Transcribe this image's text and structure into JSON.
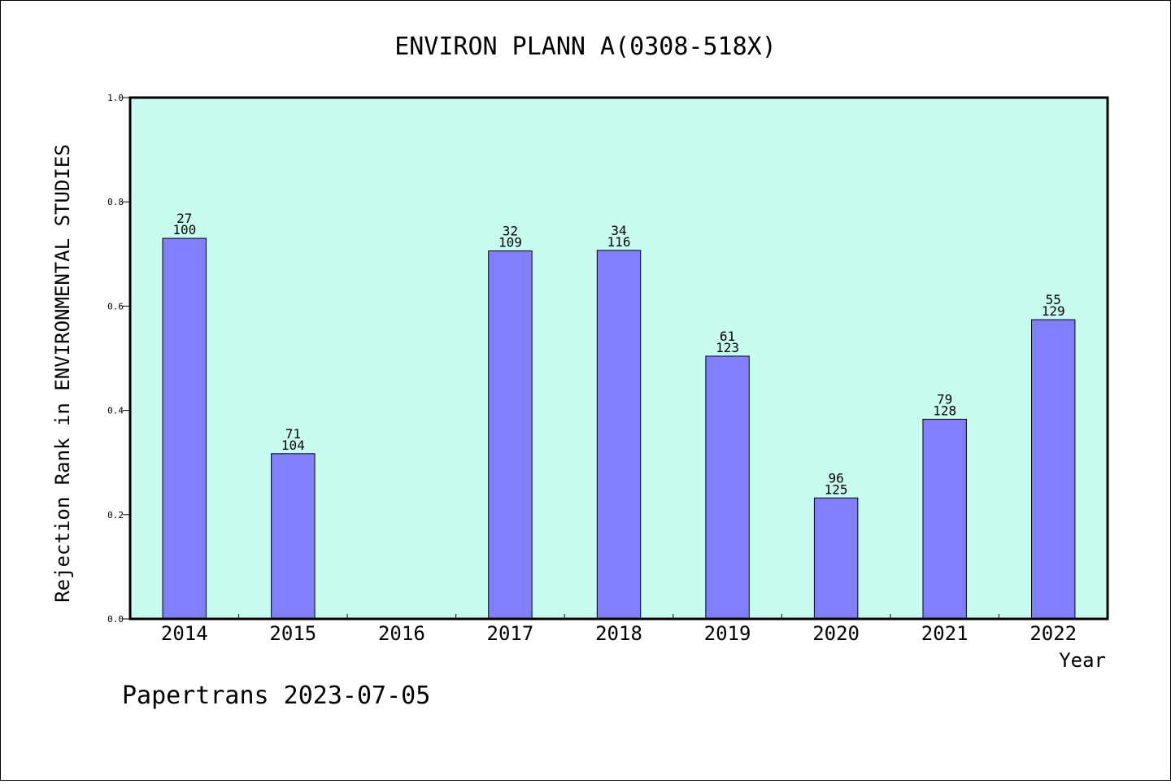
{
  "chart_data": {
    "type": "bar",
    "title": "ENVIRON PLANN A(0308-518X)",
    "xlabel": "Year",
    "ylabel": "Rejection Rank in ENVIRONMENTAL STUDIES",
    "ylim": [
      0,
      1.0
    ],
    "yticks": [
      "0.0",
      "0.2",
      "0.4",
      "0.6",
      "0.8",
      "1.0"
    ],
    "categories": [
      "2014",
      "2015",
      "2016",
      "2017",
      "2018",
      "2019",
      "2020",
      "2021",
      "2022"
    ],
    "values": [
      0.73,
      0.317,
      null,
      0.706,
      0.707,
      0.504,
      0.232,
      0.383,
      0.574
    ],
    "rank": [
      "27",
      "71",
      "",
      "32",
      "34",
      "61",
      "96",
      "79",
      "55"
    ],
    "total": [
      "100",
      "104",
      "",
      "109",
      "116",
      "123",
      "125",
      "128",
      "129"
    ],
    "grid": false,
    "colors": {
      "bar": "#8080ff",
      "plot_background": "#c8fcee",
      "axis": "#000000"
    }
  },
  "footer": {
    "text": "Papertrans 2023-07-05"
  }
}
